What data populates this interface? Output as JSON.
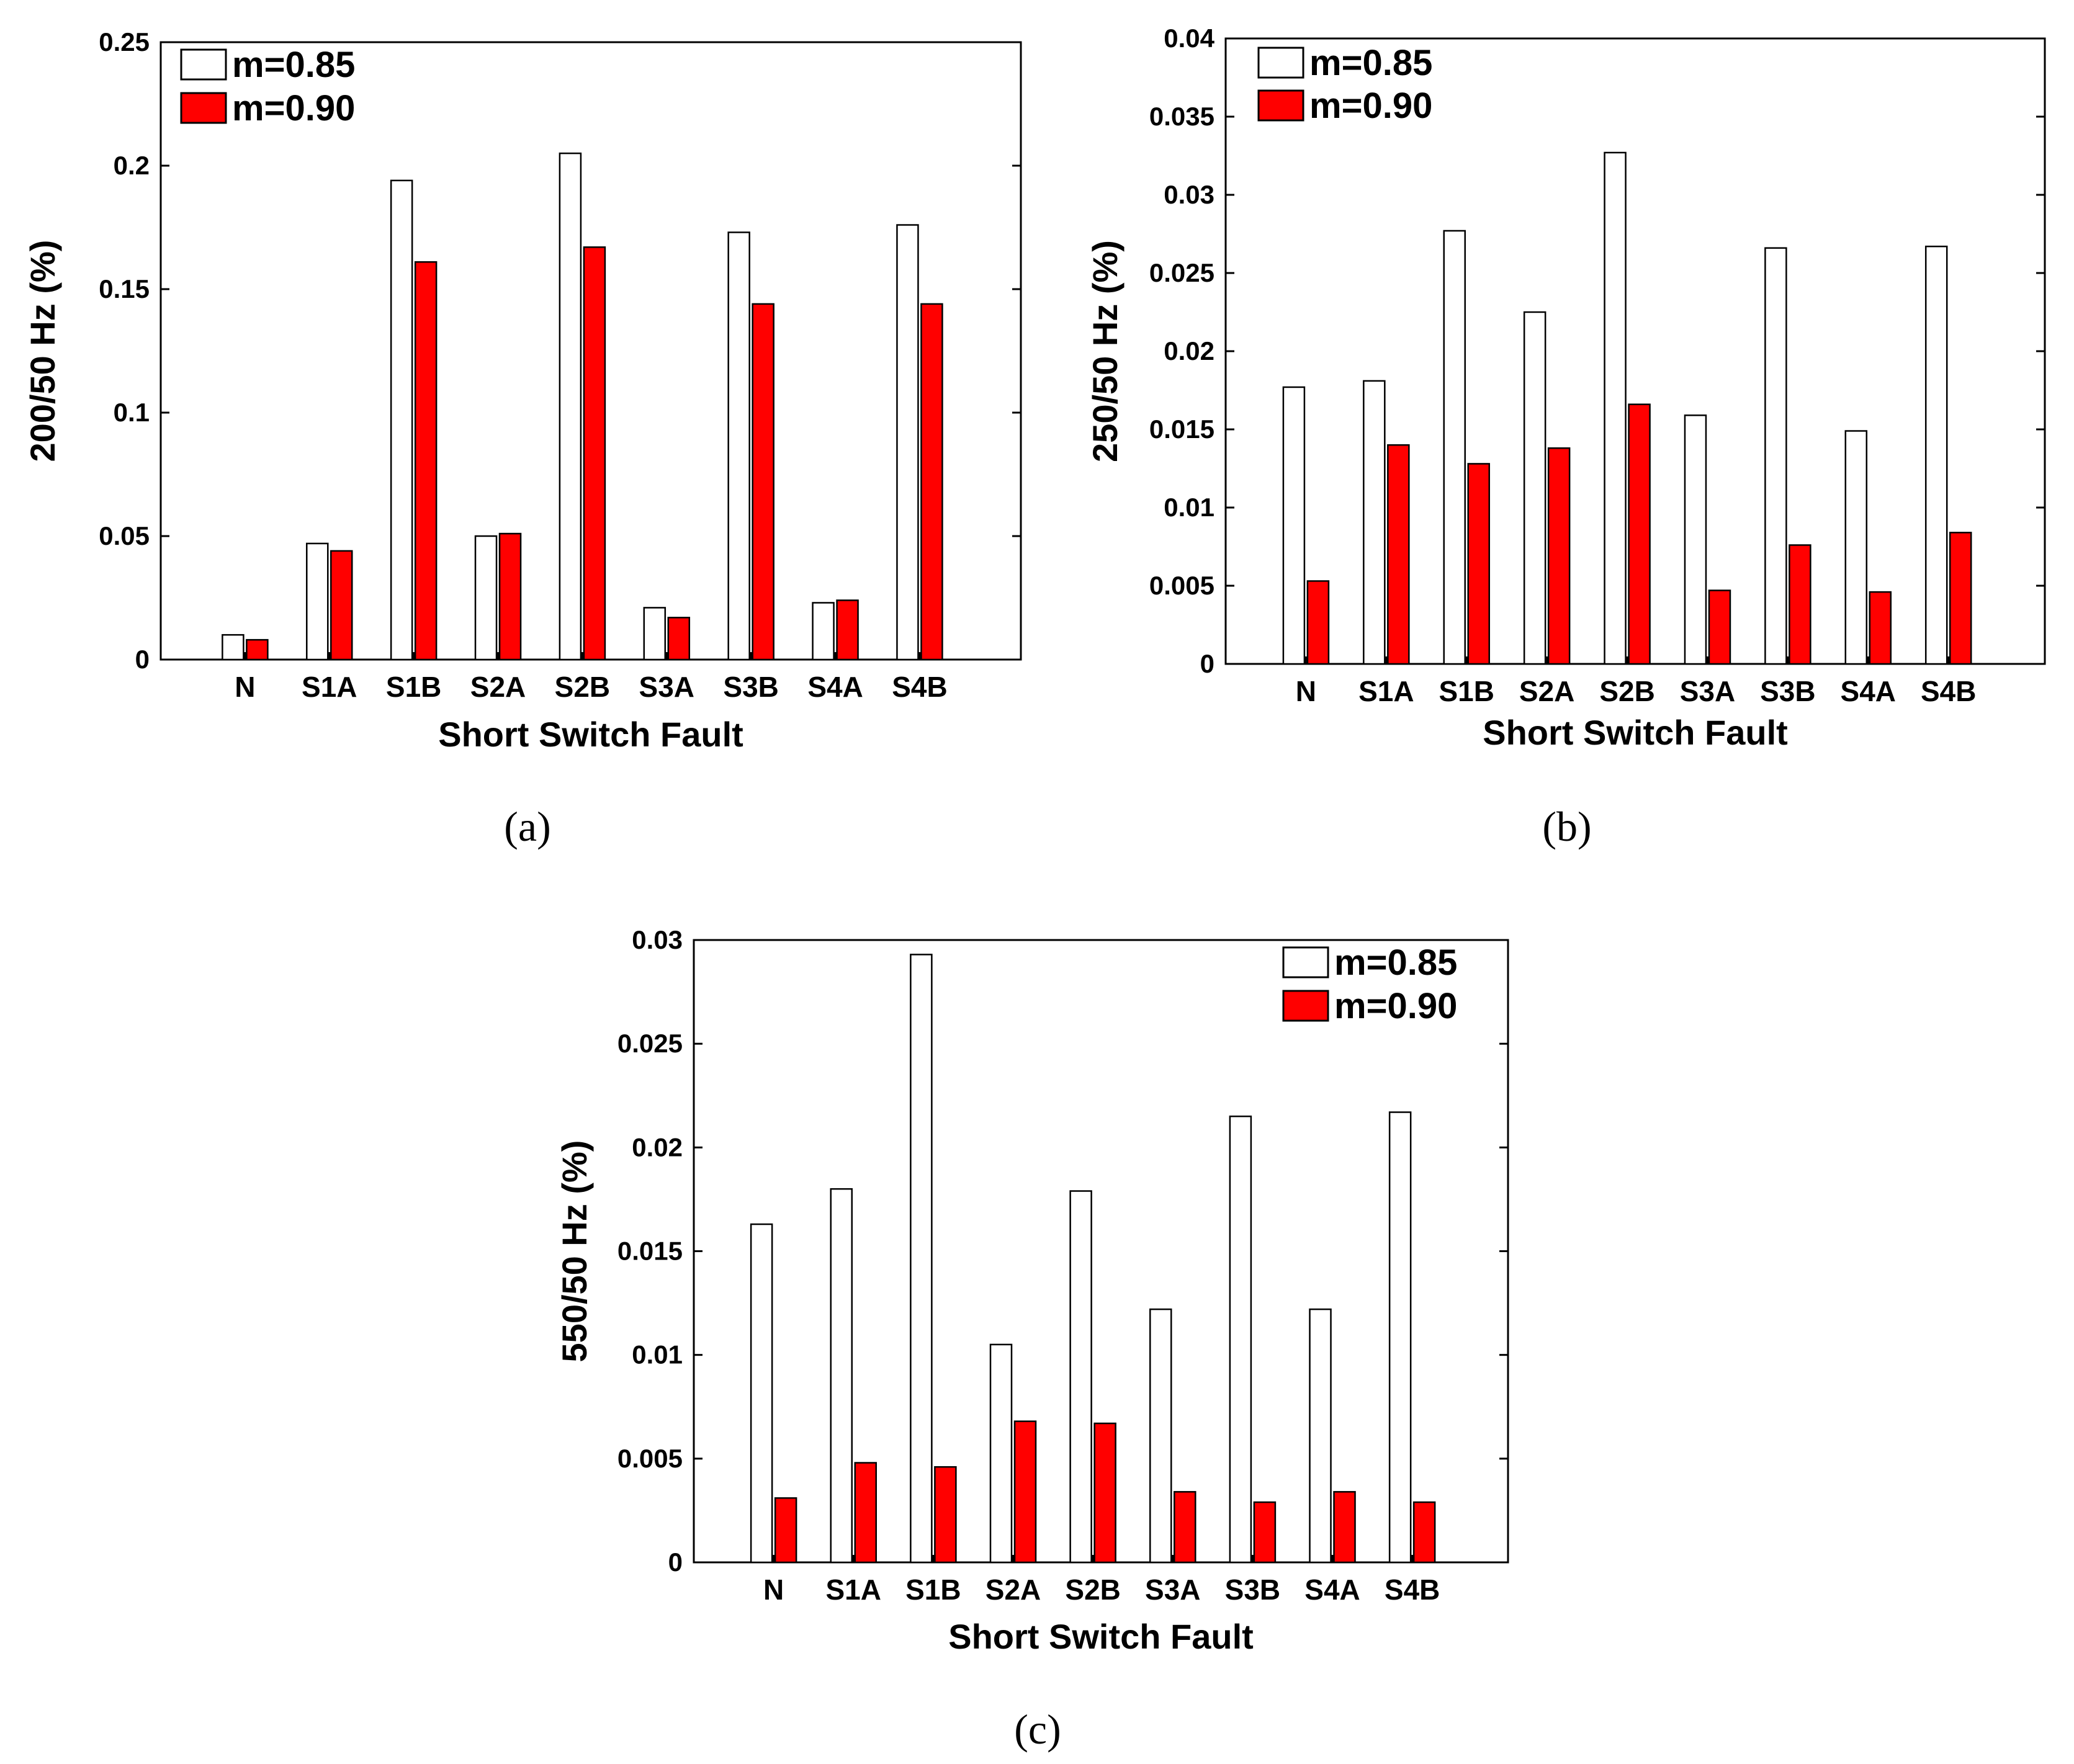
{
  "chart_data": [
    {
      "type": "bar",
      "caption": "(a)",
      "xlabel": "Short Switch Fault",
      "ylabel": "200/50 Hz (%)",
      "ylim": [
        0,
        0.25
      ],
      "yticks": [
        "0",
        "0.05",
        "0.1",
        "0.15",
        "0.2",
        "0.25"
      ],
      "categories": [
        "N",
        "S1A",
        "S1B",
        "S2A",
        "S2B",
        "S3A",
        "S3B",
        "S4A",
        "S4B"
      ],
      "legend_position": "top-left",
      "series": [
        {
          "name": "m=0.85",
          "color": "#ffffff",
          "values": [
            0.01,
            0.047,
            0.194,
            0.05,
            0.205,
            0.021,
            0.173,
            0.023,
            0.176
          ]
        },
        {
          "name": "m=0.90",
          "color": "#ff0000",
          "values": [
            0.008,
            0.044,
            0.161,
            0.051,
            0.167,
            0.017,
            0.144,
            0.024,
            0.144
          ]
        }
      ]
    },
    {
      "type": "bar",
      "caption": "(b)",
      "xlabel": "Short Switch Fault",
      "ylabel": "250/50 Hz (%)",
      "ylim": [
        0,
        0.04
      ],
      "yticks": [
        "0",
        "0.005",
        "0.01",
        "0.015",
        "0.02",
        "0.025",
        "0.03",
        "0.035",
        "0.04"
      ],
      "categories": [
        "N",
        "S1A",
        "S1B",
        "S2A",
        "S2B",
        "S3A",
        "S3B",
        "S4A",
        "S4B"
      ],
      "legend_position": "top-left",
      "series": [
        {
          "name": "m=0.85",
          "color": "#ffffff",
          "values": [
            0.0177,
            0.0181,
            0.0277,
            0.0225,
            0.0327,
            0.0159,
            0.0266,
            0.0149,
            0.0267
          ]
        },
        {
          "name": "m=0.90",
          "color": "#ff0000",
          "values": [
            0.0053,
            0.014,
            0.0128,
            0.0138,
            0.0166,
            0.0047,
            0.0076,
            0.0046,
            0.0084
          ]
        }
      ]
    },
    {
      "type": "bar",
      "caption": "(c)",
      "xlabel": "Short Switch Fault",
      "ylabel": "550/50 Hz (%)",
      "ylim": [
        0,
        0.03
      ],
      "yticks": [
        "0",
        "0.005",
        "0.01",
        "0.015",
        "0.02",
        "0.025",
        "0.03"
      ],
      "categories": [
        "N",
        "S1A",
        "S1B",
        "S2A",
        "S2B",
        "S3A",
        "S3B",
        "S4A",
        "S4B"
      ],
      "legend_position": "top-right",
      "series": [
        {
          "name": "m=0.85",
          "color": "#ffffff",
          "values": [
            0.0163,
            0.018,
            0.0293,
            0.0105,
            0.0179,
            0.0122,
            0.0215,
            0.0122,
            0.0217
          ]
        },
        {
          "name": "m=0.90",
          "color": "#ff0000",
          "values": [
            0.0031,
            0.0048,
            0.0046,
            0.0068,
            0.0067,
            0.0034,
            0.0029,
            0.0034,
            0.0029
          ]
        }
      ]
    }
  ]
}
